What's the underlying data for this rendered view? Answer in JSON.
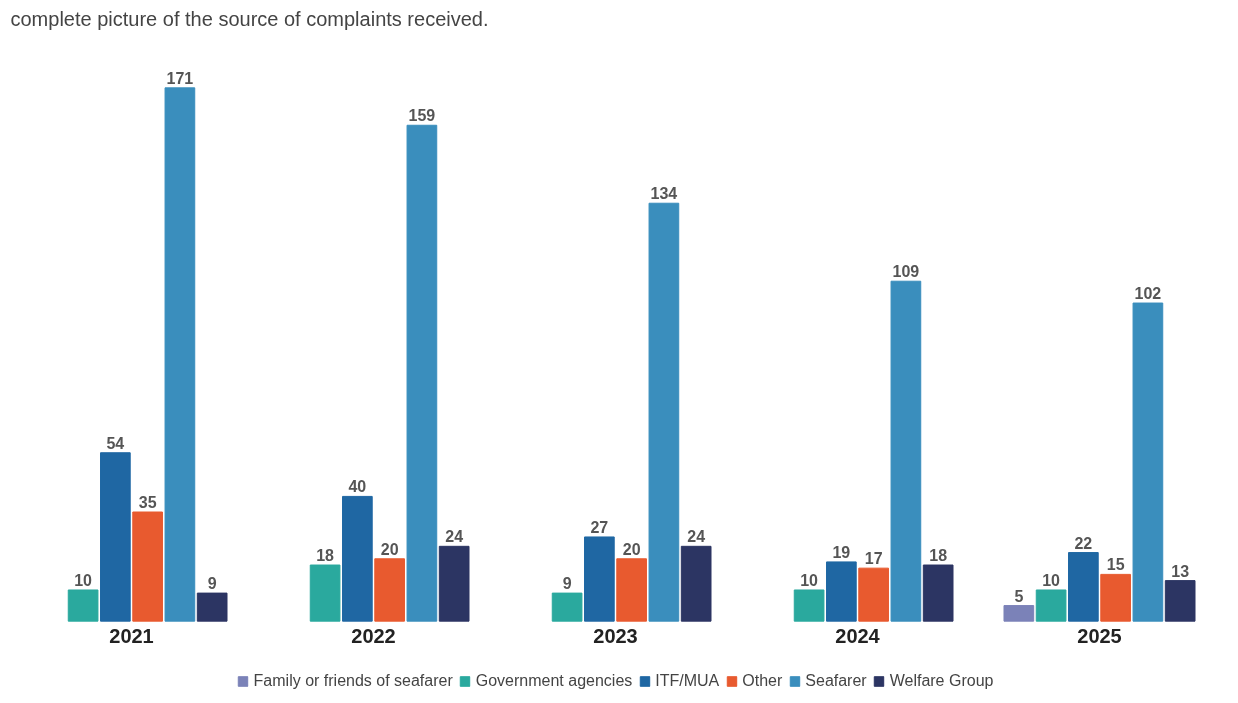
{
  "chart_data": {
    "type": "bar",
    "title": "complete picture of the source of complaints received.",
    "categories": [
      "2021",
      "2022",
      "2023",
      "2024",
      "2025"
    ],
    "series": [
      {
        "name": "Family or friends of seafarer",
        "color": "#7b82b8",
        "values": [
          null,
          null,
          null,
          null,
          5
        ]
      },
      {
        "name": "Government agencies",
        "color": "#2aa99e",
        "values": [
          10,
          18,
          9,
          10,
          10
        ]
      },
      {
        "name": "ITF/MUA",
        "color": "#1f67a3",
        "values": [
          54,
          40,
          27,
          19,
          22
        ]
      },
      {
        "name": "Other",
        "color": "#e85a2f",
        "values": [
          35,
          20,
          20,
          17,
          15
        ]
      },
      {
        "name": "Seafarer",
        "color": "#3a8ebd",
        "values": [
          171,
          159,
          134,
          109,
          102
        ]
      },
      {
        "name": "Welfare Group",
        "color": "#2c3563",
        "values": [
          9,
          24,
          24,
          18,
          13
        ]
      }
    ],
    "data_labels": true,
    "legend": "bottom"
  }
}
